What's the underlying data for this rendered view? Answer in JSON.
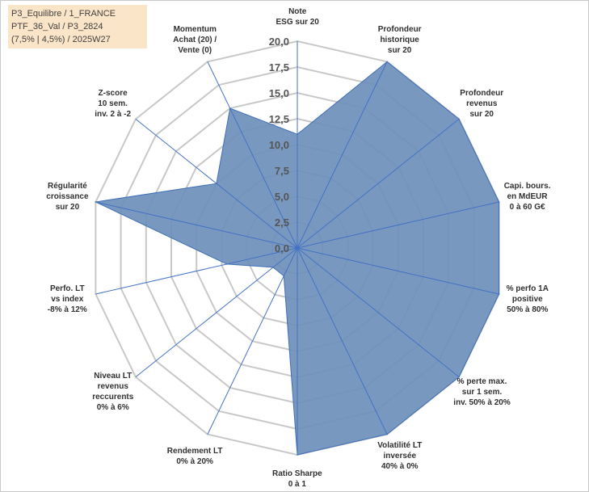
{
  "info": {
    "line1": "P3_Equilibre / 1_FRANCE",
    "line2": "PTF_36_Val / P3_2824",
    "line3": "(7,5% | 4,5%) / 2025W27"
  },
  "chart_data": {
    "type": "radar",
    "scale_max": 20,
    "ticks": [
      "0,0",
      "2,5",
      "5,0",
      "7,5",
      "10,0",
      "12,5",
      "15,0",
      "17,5",
      "20,0"
    ],
    "tick_values": [
      0,
      2.5,
      5,
      7.5,
      10,
      12.5,
      15,
      17.5,
      20
    ],
    "grid": true,
    "axes": [
      {
        "lines": [
          "Note",
          "ESG sur 20"
        ],
        "value": 11
      },
      {
        "lines": [
          "Profondeur",
          "historique",
          "sur 20"
        ],
        "value": 20
      },
      {
        "lines": [
          "Profondeur",
          "revenus",
          "sur 20"
        ],
        "value": 20
      },
      {
        "lines": [
          "Capi. bours.",
          "en MdEUR",
          "0 à 60 G€"
        ],
        "value": 20
      },
      {
        "lines": [
          "% perfo 1A",
          "positive",
          "50% à 80%"
        ],
        "value": 20
      },
      {
        "lines": [
          "% perte max.",
          "sur 1 sem.",
          "inv. 50% à 20%"
        ],
        "value": 20
      },
      {
        "lines": [
          "Volatilité LT",
          "inversée",
          "40% à 0%"
        ],
        "value": 20
      },
      {
        "lines": [
          "Ratio Sharpe",
          "0 à 1"
        ],
        "value": 20
      },
      {
        "lines": [
          "Rendement LT",
          "0% à 20%"
        ],
        "value": 3
      },
      {
        "lines": [
          "Niveau LT",
          "revenus",
          "reccurents",
          "0% à 6%"
        ],
        "value": 3
      },
      {
        "lines": [
          "Perfo. LT",
          "vs index",
          "-8% à 12%"
        ],
        "value": 7
      },
      {
        "lines": [
          "Régularité",
          "croissance",
          "sur 20"
        ],
        "value": 20
      },
      {
        "lines": [
          "Z-score",
          "10 sem.",
          "inv. 2 à -2"
        ],
        "value": 10
      },
      {
        "lines": [
          "Momentum",
          "Achat (20) /",
          "Vente (0)"
        ],
        "value": 15
      }
    ],
    "colors": {
      "fill": "#6d8fbb",
      "stroke": "#3f6fb8",
      "grid": "#c8c8c8",
      "spoke": "#4472c4"
    }
  }
}
